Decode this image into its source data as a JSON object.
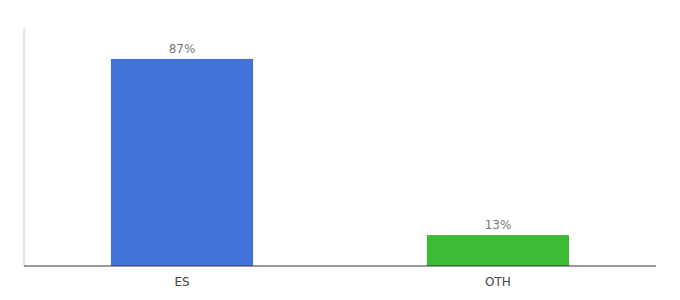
{
  "chart_data": {
    "type": "bar",
    "categories": [
      "ES",
      "OTH"
    ],
    "values": [
      87,
      13
    ],
    "value_labels": [
      "87%",
      "13%"
    ],
    "colors": [
      "#4472db",
      "#3dbb35"
    ],
    "ylim": [
      0,
      100
    ],
    "data_labels": true,
    "tick_labels": "x",
    "grid": false
  }
}
